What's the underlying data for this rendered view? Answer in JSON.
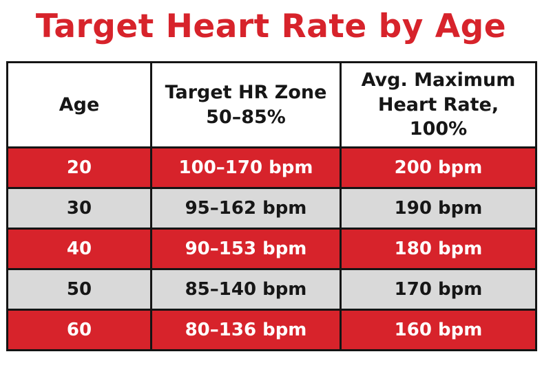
{
  "title": "Target Heart Rate by Age",
  "colors": {
    "red": "#d7232b",
    "gray": "#d9d9d9",
    "border": "#141414",
    "text_dark": "#161616",
    "text_light": "#ffffff",
    "bg": "#ffffff"
  },
  "table": {
    "headers": [
      {
        "lines": [
          "Age"
        ]
      },
      {
        "lines": [
          "Target HR Zone",
          "50–85%"
        ]
      },
      {
        "lines": [
          "Avg. Maximum",
          "Heart Rate,",
          "100%"
        ]
      }
    ],
    "rows": [
      {
        "age": "20",
        "zone": "100–170 bpm",
        "max": "200 bpm",
        "variant": "red"
      },
      {
        "age": "30",
        "zone": "95–162 bpm",
        "max": "190 bpm",
        "variant": "gray"
      },
      {
        "age": "40",
        "zone": "90–153 bpm",
        "max": "180 bpm",
        "variant": "red"
      },
      {
        "age": "50",
        "zone": "85–140 bpm",
        "max": "170 bpm",
        "variant": "gray"
      },
      {
        "age": "60",
        "zone": "80–136 bpm",
        "max": "160 bpm",
        "variant": "red"
      }
    ]
  },
  "chart_data": {
    "type": "table",
    "title": "Target Heart Rate by Age",
    "columns": [
      "Age",
      "Target HR Zone 50–85%",
      "Avg. Maximum Heart Rate, 100%"
    ],
    "rows": [
      [
        "20",
        "100–170 bpm",
        "200 bpm"
      ],
      [
        "30",
        "95–162 bpm",
        "190 bpm"
      ],
      [
        "40",
        "90–153 bpm",
        "180 bpm"
      ],
      [
        "50",
        "85–140 bpm",
        "170 bpm"
      ],
      [
        "60",
        "80–136 bpm",
        "160 bpm"
      ]
    ],
    "layout": {
      "row_fill_pattern": [
        "red",
        "gray",
        "red",
        "gray",
        "red"
      ],
      "grid": true,
      "header_background": "white"
    }
  }
}
